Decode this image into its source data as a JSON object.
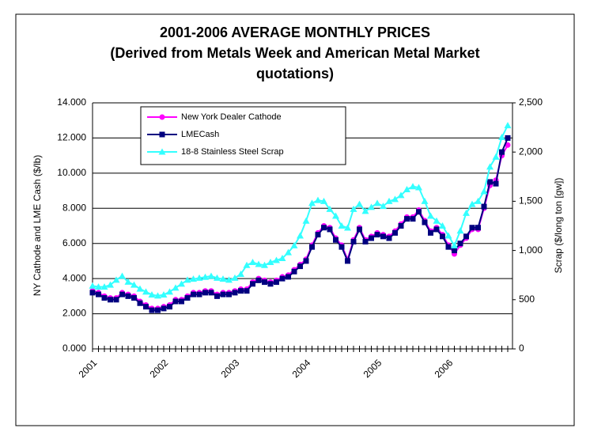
{
  "chart_data": {
    "type": "line",
    "title": "2001-2006 AVERAGE MONTHLY PRICES",
    "subtitle": [
      "(Derived from Metals Week and American Metal Market",
      "quotations)"
    ],
    "ylabel": "NY Cathode and LME Cash ($/lb)",
    "y2label": "Scrap ($/long ton [gw])",
    "x": [
      "2001",
      null,
      null,
      null,
      null,
      null,
      null,
      null,
      null,
      null,
      null,
      null,
      "2002",
      null,
      null,
      null,
      null,
      null,
      null,
      null,
      null,
      null,
      null,
      null,
      "2003",
      null,
      null,
      null,
      null,
      null,
      null,
      null,
      null,
      null,
      null,
      null,
      "2004",
      null,
      null,
      null,
      null,
      null,
      null,
      null,
      null,
      null,
      null,
      null,
      "2005",
      null,
      null,
      null,
      null,
      null,
      null,
      null,
      null,
      null,
      null,
      null,
      "2006",
      null,
      null,
      null,
      null,
      null,
      null,
      null,
      null,
      null,
      null
    ],
    "ylim": [
      0,
      14
    ],
    "yticks": [
      {
        "value": 0,
        "label": "0.000"
      },
      {
        "value": 2,
        "label": "2.000"
      },
      {
        "value": 4,
        "label": "4.000"
      },
      {
        "value": 6,
        "label": "6.000"
      },
      {
        "value": 8,
        "label": "8.000"
      },
      {
        "value": 10,
        "label": "10.000"
      },
      {
        "value": 12,
        "label": "12.000"
      },
      {
        "value": 14,
        "label": "14.000"
      }
    ],
    "y2lim": [
      0,
      2500
    ],
    "y2ticks": [
      0,
      500,
      {
        "value": 1000,
        "label": "1,000"
      },
      {
        "value": 1500,
        "label": "1,500"
      },
      {
        "value": 2000,
        "label": "2,000"
      },
      {
        "value": 2500,
        "label": "2,500"
      }
    ],
    "grid": true,
    "legend": "top-left",
    "series": [
      {
        "name": "New York Dealer Cathode",
        "color": "#ff00ff",
        "marker": "circle",
        "values": [
          3.3,
          3.2,
          3.0,
          2.9,
          2.9,
          3.2,
          3.1,
          3.0,
          2.7,
          2.5,
          2.3,
          2.3,
          2.4,
          2.5,
          2.8,
          2.8,
          3.0,
          3.2,
          3.2,
          3.3,
          3.3,
          3.1,
          3.2,
          3.2,
          3.3,
          3.4,
          3.4,
          3.8,
          4.0,
          3.9,
          3.8,
          3.9,
          4.1,
          4.2,
          4.5,
          4.8,
          5.1,
          5.9,
          6.6,
          7.0,
          6.9,
          6.3,
          5.9,
          5.1,
          6.2,
          6.9,
          6.2,
          6.4,
          6.6,
          6.5,
          6.4,
          6.7,
          7.1,
          7.5,
          7.5,
          7.9,
          7.3,
          6.7,
          6.9,
          6.5,
          5.9,
          5.4,
          5.9,
          6.3,
          6.8,
          6.8,
          8.0,
          9.3,
          9.6,
          11.0,
          11.6
        ]
      },
      {
        "name": "LMECash",
        "color": "#000080",
        "marker": "square",
        "values": [
          3.2,
          3.1,
          2.9,
          2.8,
          2.8,
          3.1,
          3.0,
          2.9,
          2.6,
          2.4,
          2.2,
          2.2,
          2.3,
          2.4,
          2.7,
          2.7,
          2.9,
          3.1,
          3.1,
          3.2,
          3.2,
          3.0,
          3.1,
          3.1,
          3.2,
          3.3,
          3.3,
          3.7,
          3.9,
          3.8,
          3.7,
          3.8,
          4.0,
          4.1,
          4.4,
          4.7,
          5.0,
          5.8,
          6.5,
          6.9,
          6.8,
          6.2,
          5.8,
          5.0,
          6.1,
          6.8,
          6.1,
          6.3,
          6.5,
          6.4,
          6.3,
          6.6,
          7.0,
          7.4,
          7.4,
          7.8,
          7.2,
          6.6,
          6.8,
          6.4,
          5.8,
          5.6,
          6.0,
          6.4,
          6.9,
          6.9,
          8.1,
          9.5,
          9.4,
          11.2,
          12.0
        ]
      },
      {
        "name": "18-8 Stainless Steel Scrap",
        "color": "#33ffff",
        "marker": "triangle",
        "axis": "y2",
        "values": [
          640,
          630,
          630,
          650,
          700,
          740,
          680,
          650,
          610,
          580,
          550,
          540,
          550,
          580,
          620,
          660,
          700,
          710,
          720,
          730,
          740,
          720,
          710,
          700,
          720,
          760,
          850,
          880,
          860,
          850,
          880,
          900,
          920,
          980,
          1050,
          1150,
          1300,
          1480,
          1510,
          1500,
          1420,
          1350,
          1250,
          1230,
          1420,
          1470,
          1400,
          1440,
          1480,
          1450,
          1500,
          1520,
          1560,
          1620,
          1650,
          1640,
          1500,
          1350,
          1300,
          1250,
          1150,
          1050,
          1200,
          1380,
          1470,
          1500,
          1600,
          1850,
          1950,
          2150,
          2270
        ]
      }
    ]
  }
}
